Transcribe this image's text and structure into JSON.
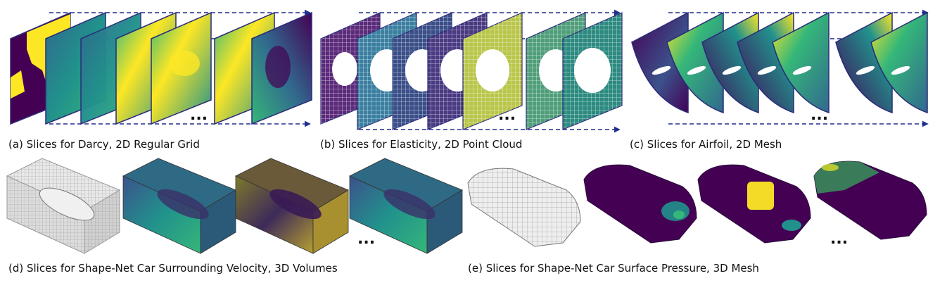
{
  "captions": {
    "a": "(a) Slices for Darcy, 2D Regular Grid",
    "b": "(b) Slices for Elasticity, 2D Point Cloud",
    "c": "(c) Slices for Airfoil, 2D Mesh",
    "d": "(d) Slices for Shape-Net Car Surrounding Velocity, 3D Volumes",
    "e": "(e) Slices for Shape-Net Car Surface Pressure, 3D Mesh"
  },
  "ellipsis": "...",
  "colors": {
    "arrow": "#1f2f8f",
    "viridis_dark": "#440154",
    "viridis_blue": "#31688e",
    "viridis_teal": "#21918c",
    "viridis_green": "#35b779",
    "viridis_yellow": "#fde725"
  }
}
